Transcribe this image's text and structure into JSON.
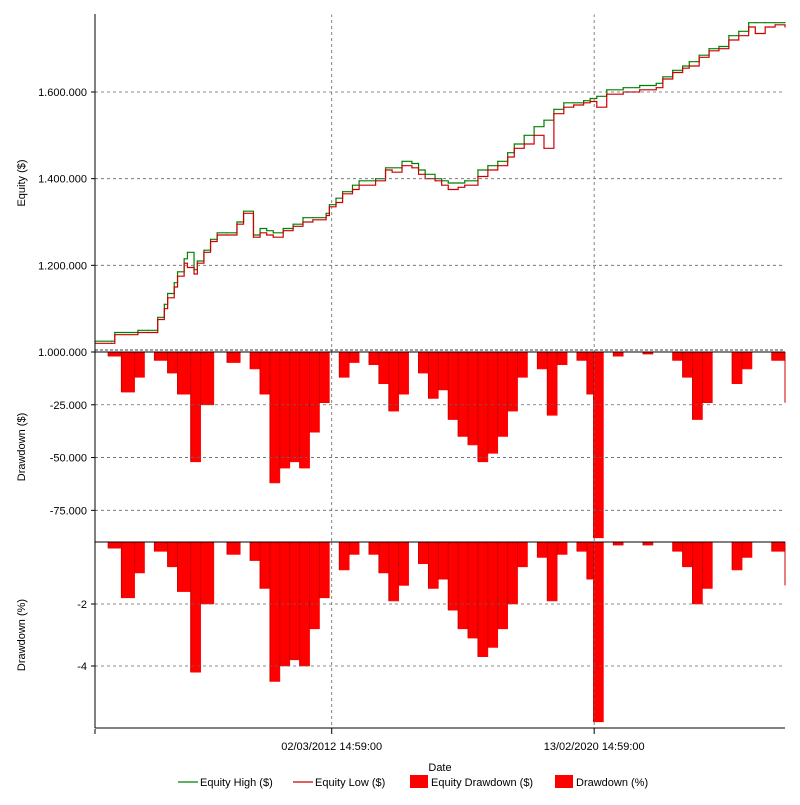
{
  "chart_data": [
    {
      "type": "line",
      "panel": "equity",
      "ylabel": "Equity ($)",
      "y_ticks": [
        1000000,
        1200000,
        1400000,
        1600000
      ],
      "y_tick_labels": [
        "1.000.000",
        "1.200.000",
        "1.400.000",
        "1.600.000"
      ],
      "ylim": [
        1000000,
        1780000
      ],
      "x_range": [
        2005.0,
        2025.9
      ],
      "grid": true,
      "series": [
        {
          "name": "Equity High ($)",
          "color": "#008000",
          "x": [
            2005.0,
            2005.5,
            2005.6,
            2006.3,
            2006.6,
            2006.9,
            2007.1,
            2007.2,
            2007.4,
            2007.5,
            2007.7,
            2007.8,
            2008.0,
            2008.1,
            2008.3,
            2008.5,
            2008.7,
            2009.0,
            2009.3,
            2009.5,
            2009.8,
            2010.0,
            2010.2,
            2010.4,
            2010.7,
            2011.0,
            2011.3,
            2011.6,
            2012.0,
            2012.1,
            2012.3,
            2012.5,
            2012.8,
            2013.0,
            2013.5,
            2013.8,
            2014.0,
            2014.3,
            2014.6,
            2014.8,
            2015.0,
            2015.3,
            2015.5,
            2015.7,
            2016.0,
            2016.2,
            2016.6,
            2016.9,
            2017.2,
            2017.5,
            2017.7,
            2018.0,
            2018.3,
            2018.6,
            2018.9,
            2019.2,
            2019.5,
            2019.8,
            2020.0,
            2020.2,
            2020.5,
            2021.0,
            2021.5,
            2022.0,
            2022.2,
            2022.5,
            2022.8,
            2023.0,
            2023.3,
            2023.6,
            2023.9,
            2024.2,
            2024.5,
            2024.8,
            2025.0,
            2025.3,
            2025.6,
            2025.9
          ],
          "y": [
            1025000,
            1025000,
            1045000,
            1050000,
            1050000,
            1080000,
            1110000,
            1135000,
            1160000,
            1185000,
            1215000,
            1230000,
            1190000,
            1210000,
            1235000,
            1260000,
            1275000,
            1275000,
            1300000,
            1325000,
            1270000,
            1285000,
            1280000,
            1275000,
            1285000,
            1295000,
            1310000,
            1310000,
            1320000,
            1340000,
            1355000,
            1370000,
            1385000,
            1395000,
            1400000,
            1425000,
            1425000,
            1440000,
            1435000,
            1420000,
            1410000,
            1400000,
            1395000,
            1390000,
            1390000,
            1395000,
            1420000,
            1430000,
            1440000,
            1460000,
            1480000,
            1500000,
            1520000,
            1535000,
            1560000,
            1575000,
            1575000,
            1580000,
            1585000,
            1590000,
            1605000,
            1610000,
            1615000,
            1620000,
            1635000,
            1650000,
            1660000,
            1670000,
            1685000,
            1700000,
            1705000,
            1730000,
            1740000,
            1760000,
            1760000,
            1760000,
            1760000,
            1760000
          ]
        },
        {
          "name": "Equity Low ($)",
          "color": "#cc0000",
          "x": [
            2005.0,
            2005.5,
            2005.6,
            2006.3,
            2006.6,
            2006.9,
            2007.1,
            2007.2,
            2007.4,
            2007.5,
            2007.7,
            2007.8,
            2008.0,
            2008.1,
            2008.3,
            2008.5,
            2008.7,
            2009.0,
            2009.3,
            2009.5,
            2009.8,
            2010.0,
            2010.2,
            2010.4,
            2010.7,
            2011.0,
            2011.3,
            2011.6,
            2012.0,
            2012.1,
            2012.3,
            2012.5,
            2012.8,
            2013.0,
            2013.5,
            2013.8,
            2014.0,
            2014.3,
            2014.6,
            2014.8,
            2015.0,
            2015.3,
            2015.5,
            2015.7,
            2016.0,
            2016.2,
            2016.6,
            2016.9,
            2017.2,
            2017.5,
            2017.7,
            2018.0,
            2018.3,
            2018.6,
            2018.9,
            2019.2,
            2019.5,
            2019.8,
            2020.0,
            2020.2,
            2020.5,
            2021.0,
            2021.5,
            2022.0,
            2022.2,
            2022.5,
            2022.8,
            2023.0,
            2023.3,
            2023.6,
            2023.9,
            2024.2,
            2024.5,
            2024.8,
            2025.0,
            2025.3,
            2025.6,
            2025.9
          ],
          "y": [
            1020000,
            1020000,
            1040000,
            1045000,
            1045000,
            1075000,
            1100000,
            1125000,
            1150000,
            1175000,
            1205000,
            1195000,
            1180000,
            1205000,
            1230000,
            1255000,
            1270000,
            1270000,
            1295000,
            1320000,
            1265000,
            1275000,
            1270000,
            1265000,
            1280000,
            1290000,
            1300000,
            1305000,
            1315000,
            1335000,
            1345000,
            1365000,
            1375000,
            1385000,
            1395000,
            1420000,
            1415000,
            1430000,
            1425000,
            1410000,
            1400000,
            1395000,
            1385000,
            1375000,
            1380000,
            1385000,
            1405000,
            1420000,
            1430000,
            1450000,
            1470000,
            1480000,
            1500000,
            1470000,
            1550000,
            1565000,
            1570000,
            1575000,
            1578000,
            1565000,
            1595000,
            1600000,
            1605000,
            1610000,
            1630000,
            1645000,
            1655000,
            1660000,
            1680000,
            1695000,
            1700000,
            1720000,
            1730000,
            1750000,
            1735000,
            1750000,
            1755000,
            1750000
          ]
        }
      ]
    },
    {
      "type": "area",
      "panel": "drawdown_usd",
      "ylabel": "Drawdown ($)",
      "y_ticks": [
        -25000,
        -50000,
        -75000
      ],
      "y_tick_labels": [
        "-25.000",
        "-50.000",
        "-75.000"
      ],
      "ylim": [
        -90000,
        0
      ],
      "x_range": [
        2005.0,
        2025.9
      ],
      "grid": true,
      "series": [
        {
          "name": "Equity Drawdown ($)",
          "color": "#ff0000",
          "x": [
            2005.0,
            2005.4,
            2005.8,
            2006.2,
            2006.5,
            2006.8,
            2007.2,
            2007.5,
            2007.9,
            2008.2,
            2008.6,
            2009.0,
            2009.4,
            2009.7,
            2010.0,
            2010.3,
            2010.6,
            2010.9,
            2011.2,
            2011.5,
            2011.8,
            2012.1,
            2012.4,
            2012.7,
            2013.0,
            2013.3,
            2013.6,
            2013.9,
            2014.2,
            2014.5,
            2014.8,
            2015.1,
            2015.4,
            2015.7,
            2016.0,
            2016.3,
            2016.6,
            2016.9,
            2017.2,
            2017.5,
            2017.8,
            2018.1,
            2018.4,
            2018.7,
            2019.0,
            2019.3,
            2019.6,
            2019.9,
            2020.1,
            2020.4,
            2020.7,
            2021.0,
            2021.3,
            2021.6,
            2021.9,
            2022.2,
            2022.5,
            2022.8,
            2023.1,
            2023.4,
            2023.7,
            2024.0,
            2024.3,
            2024.6,
            2024.9,
            2025.2,
            2025.5,
            2025.9
          ],
          "y": [
            0,
            -2000,
            -19000,
            -12000,
            0,
            -4000,
            -10000,
            -20000,
            -52000,
            -25000,
            0,
            -5000,
            0,
            -8000,
            -20000,
            -62000,
            -55000,
            -52000,
            -55000,
            -38000,
            -24000,
            0,
            -12000,
            -5000,
            0,
            -6000,
            -15000,
            -28000,
            -20000,
            0,
            -10000,
            -22000,
            -18000,
            -32000,
            -40000,
            -44000,
            -52000,
            -48000,
            -40000,
            -28000,
            -12000,
            0,
            -8000,
            -30000,
            -6000,
            0,
            -4000,
            -20000,
            -88000,
            0,
            -2000,
            0,
            0,
            -1000,
            0,
            0,
            -4000,
            -12000,
            -32000,
            -24000,
            0,
            0,
            -15000,
            -8000,
            0,
            0,
            -4000,
            -24000
          ]
        }
      ]
    },
    {
      "type": "area",
      "panel": "drawdown_pct",
      "ylabel": "Drawdown (%)",
      "xlabel": "Date",
      "y_ticks": [
        -2,
        -4
      ],
      "y_tick_labels": [
        "-2",
        "-4"
      ],
      "ylim": [
        -6,
        0
      ],
      "x_range": [
        2005.0,
        2025.9
      ],
      "x_ticks": [
        2012.17,
        2020.12
      ],
      "x_tick_labels": [
        "02/03/2012 14:59:00",
        "13/02/2020 14:59:00"
      ],
      "grid": true,
      "series": [
        {
          "name": "Drawdown (%)",
          "color": "#ff0000",
          "x": [
            2005.0,
            2005.4,
            2005.8,
            2006.2,
            2006.5,
            2006.8,
            2007.2,
            2007.5,
            2007.9,
            2008.2,
            2008.6,
            2009.0,
            2009.4,
            2009.7,
            2010.0,
            2010.3,
            2010.6,
            2010.9,
            2011.2,
            2011.5,
            2011.8,
            2012.1,
            2012.4,
            2012.7,
            2013.0,
            2013.3,
            2013.6,
            2013.9,
            2014.2,
            2014.5,
            2014.8,
            2015.1,
            2015.4,
            2015.7,
            2016.0,
            2016.3,
            2016.6,
            2016.9,
            2017.2,
            2017.5,
            2017.8,
            2018.1,
            2018.4,
            2018.7,
            2019.0,
            2019.3,
            2019.6,
            2019.9,
            2020.1,
            2020.4,
            2020.7,
            2021.0,
            2021.3,
            2021.6,
            2021.9,
            2022.2,
            2022.5,
            2022.8,
            2023.1,
            2023.4,
            2023.7,
            2024.0,
            2024.3,
            2024.6,
            2024.9,
            2025.2,
            2025.5,
            2025.9
          ],
          "y": [
            0,
            -0.2,
            -1.8,
            -1.0,
            0,
            -0.3,
            -0.8,
            -1.6,
            -4.2,
            -2.0,
            0,
            -0.4,
            0,
            -0.6,
            -1.5,
            -4.5,
            -4.0,
            -3.8,
            -4.0,
            -2.8,
            -1.8,
            0,
            -0.9,
            -0.4,
            0,
            -0.4,
            -1.0,
            -1.9,
            -1.4,
            0,
            -0.7,
            -1.5,
            -1.2,
            -2.2,
            -2.8,
            -3.1,
            -3.7,
            -3.4,
            -2.8,
            -2.0,
            -0.8,
            0,
            -0.5,
            -1.9,
            -0.4,
            0,
            -0.3,
            -1.2,
            -5.8,
            0,
            -0.1,
            0,
            0,
            -0.1,
            0,
            0,
            -0.3,
            -0.8,
            -2.0,
            -1.5,
            0,
            0,
            -0.9,
            -0.5,
            0,
            0,
            -0.3,
            -1.4
          ]
        }
      ]
    }
  ],
  "legend": {
    "items": [
      {
        "label": "Equity High ($)",
        "kind": "line",
        "color": "#008000"
      },
      {
        "label": "Equity Low ($)",
        "kind": "line",
        "color": "#cc0000"
      },
      {
        "label": "Equity Drawdown ($)",
        "kind": "box",
        "color": "#ff0000"
      },
      {
        "label": "Drawdown (%)",
        "kind": "box",
        "color": "#ff0000"
      }
    ]
  }
}
